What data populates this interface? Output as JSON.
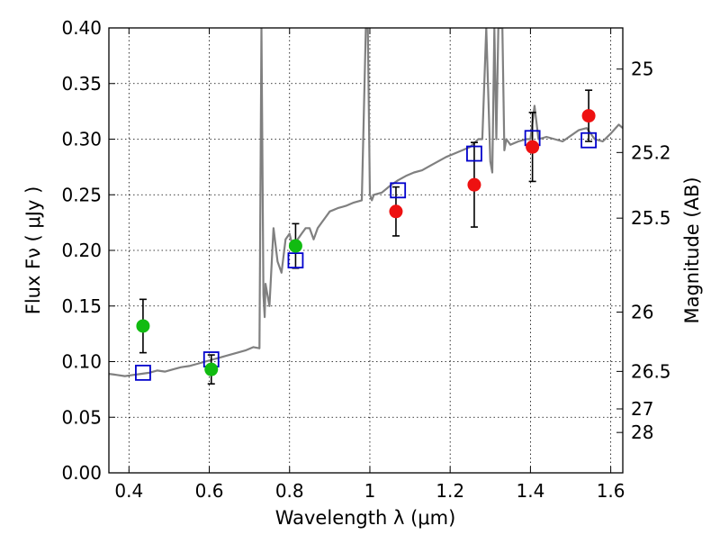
{
  "chart_data": {
    "type": "scatter",
    "xlabel": "Wavelength  λ (μm)",
    "ylabel": "Flux  Fν  ( μJy )",
    "y2label": "Magnitude (AB)",
    "xlim": [
      0.35,
      1.63
    ],
    "ylim": [
      0.0,
      0.4
    ],
    "grid": true,
    "grid_style": "dotted",
    "x_ticks": [
      0.4,
      0.6,
      0.8,
      1.0,
      1.2,
      1.4,
      1.6
    ],
    "x_tick_labels": [
      "0.4",
      "0.6",
      "0.8",
      "1",
      "1.2",
      "1.4",
      "1.6"
    ],
    "y_ticks": [
      0.0,
      0.05,
      0.1,
      0.15,
      0.2,
      0.25,
      0.3,
      0.35,
      0.4
    ],
    "y_tick_labels": [
      "0.00",
      "0.05",
      "0.10",
      "0.15",
      "0.20",
      "0.25",
      "0.30",
      "0.35",
      "0.40"
    ],
    "y2_ticks": [
      {
        "flux": 0.0363,
        "label": "28"
      },
      {
        "flux": 0.0575,
        "label": "27"
      },
      {
        "flux": 0.0912,
        "label": "26.5"
      },
      {
        "flux": 0.1445,
        "label": "26"
      },
      {
        "flux": 0.229,
        "label": "25.5"
      },
      {
        "flux": 0.288,
        "label": "25.2"
      },
      {
        "flux": 0.363,
        "label": "25"
      }
    ],
    "colors": {
      "spectrum": "#808080",
      "model": "#0000cc",
      "green": "#11bb11",
      "red": "#ee1111",
      "errorbar": "#000000"
    },
    "series": [
      {
        "kind": "line",
        "x": [
          0.35,
          0.37,
          0.39,
          0.41,
          0.43,
          0.45,
          0.47,
          0.49,
          0.51,
          0.53,
          0.55,
          0.57,
          0.59,
          0.61,
          0.63,
          0.65,
          0.67,
          0.69,
          0.71,
          0.725,
          0.73,
          0.735,
          0.738,
          0.74,
          0.745,
          0.75,
          0.76,
          0.77,
          0.78,
          0.79,
          0.8,
          0.81,
          0.82,
          0.83,
          0.84,
          0.85,
          0.86,
          0.87,
          0.88,
          0.89,
          0.9,
          0.92,
          0.94,
          0.96,
          0.98,
          0.99,
          0.995,
          1.0,
          1.005,
          1.01,
          1.03,
          1.05,
          1.07,
          1.09,
          1.11,
          1.13,
          1.15,
          1.17,
          1.19,
          1.21,
          1.23,
          1.25,
          1.27,
          1.28,
          1.29,
          1.3,
          1.305,
          1.31,
          1.315,
          1.32,
          1.33,
          1.335,
          1.34,
          1.35,
          1.37,
          1.39,
          1.4,
          1.41,
          1.42,
          1.44,
          1.46,
          1.48,
          1.5,
          1.52,
          1.54,
          1.56,
          1.58,
          1.6,
          1.62,
          1.63
        ],
        "y": [
          0.089,
          0.088,
          0.087,
          0.088,
          0.089,
          0.09,
          0.092,
          0.091,
          0.093,
          0.095,
          0.096,
          0.098,
          0.1,
          0.102,
          0.104,
          0.106,
          0.108,
          0.11,
          0.113,
          0.112,
          0.4,
          0.16,
          0.14,
          0.17,
          0.16,
          0.15,
          0.22,
          0.19,
          0.18,
          0.21,
          0.215,
          0.2,
          0.21,
          0.215,
          0.22,
          0.22,
          0.21,
          0.22,
          0.225,
          0.23,
          0.235,
          0.238,
          0.24,
          0.243,
          0.245,
          0.4,
          0.4,
          0.25,
          0.245,
          0.25,
          0.252,
          0.258,
          0.263,
          0.267,
          0.27,
          0.272,
          0.276,
          0.28,
          0.284,
          0.287,
          0.29,
          0.293,
          0.3,
          0.3,
          0.4,
          0.28,
          0.27,
          0.4,
          0.3,
          0.4,
          0.4,
          0.29,
          0.3,
          0.295,
          0.298,
          0.3,
          0.3,
          0.33,
          0.3,
          0.302,
          0.3,
          0.298,
          0.303,
          0.308,
          0.31,
          0.3,
          0.298,
          0.305,
          0.313,
          0.31
        ]
      },
      {
        "kind": "points",
        "name": "model",
        "marker": "open-square",
        "x": [
          0.435,
          0.605,
          0.815,
          1.07,
          1.26,
          1.405,
          1.545
        ],
        "y": [
          0.09,
          0.102,
          0.191,
          0.254,
          0.287,
          0.301,
          0.299
        ]
      },
      {
        "kind": "points",
        "name": "green",
        "marker": "filled-circle",
        "x": [
          0.435,
          0.605,
          0.815
        ],
        "y": [
          0.132,
          0.093,
          0.204
        ],
        "yerr": [
          0.024,
          0.013,
          0.02
        ]
      },
      {
        "kind": "points",
        "name": "red",
        "marker": "filled-circle",
        "x": [
          1.065,
          1.26,
          1.405,
          1.545
        ],
        "y": [
          0.235,
          0.259,
          0.293,
          0.321
        ],
        "yerr": [
          0.022,
          0.038,
          0.031,
          0.023
        ]
      }
    ]
  }
}
